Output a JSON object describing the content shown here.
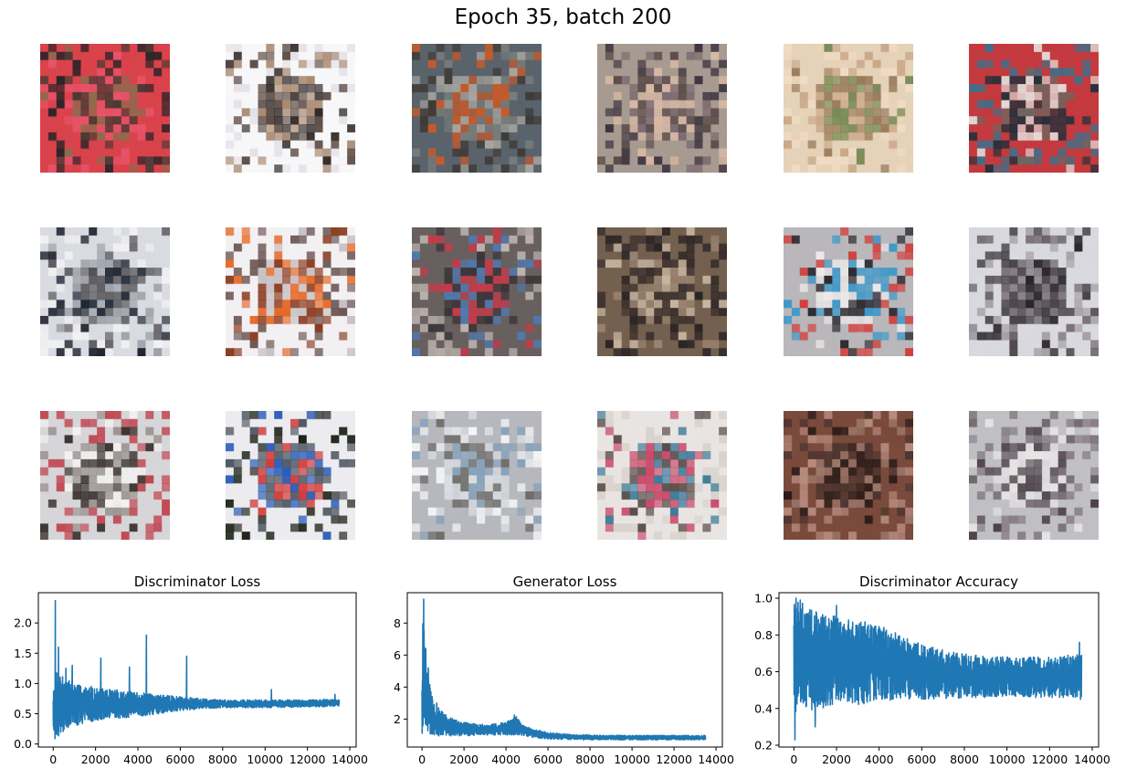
{
  "figure": {
    "suptitle": "Epoch 35, batch 200"
  },
  "samples": {
    "rows": 3,
    "cols": 6,
    "palettes": [
      [
        "#d9434b",
        "#4a3a34",
        "#8f6a4f",
        "#e8546a",
        "#2b2428"
      ],
      [
        "#f7f7f9",
        "#5b4a42",
        "#2d2624",
        "#a98a72",
        "#e4e2e6"
      ],
      [
        "#5a636b",
        "#777d7b",
        "#a7a5a0",
        "#c65a2a",
        "#3e3a36"
      ],
      [
        "#a79a90",
        "#5a4a48",
        "#d7b8a4",
        "#7d6b72",
        "#3d3540"
      ],
      [
        "#e5d2b8",
        "#c9a888",
        "#9a7b5c",
        "#7a8a56",
        "#f0dcc4"
      ],
      [
        "#c33a3f",
        "#27303a",
        "#6d6660",
        "#e2dad6",
        "#3f6e88"
      ],
      [
        "#d9dbe0",
        "#9ca0a8",
        "#202633",
        "#5d5b60",
        "#f1f1f3"
      ],
      [
        "#f2f0f2",
        "#c6bfc3",
        "#8a3b1f",
        "#e56a2a",
        "#6b5552"
      ],
      [
        "#68605e",
        "#3a3438",
        "#c63a48",
        "#4f79b0",
        "#bdb5b0"
      ],
      [
        "#74604f",
        "#3b302d",
        "#9b8472",
        "#c9b7a2",
        "#2a2424"
      ],
      [
        "#b9b7ba",
        "#ede9ea",
        "#2e2c33",
        "#3f98c8",
        "#d23f3c"
      ],
      [
        "#d8d9de",
        "#494348",
        "#7a7078",
        "#2a262c",
        "#a59fa3"
      ],
      [
        "#d6d5d8",
        "#9b9390",
        "#3b3330",
        "#f3f1f1",
        "#c04650"
      ],
      [
        "#ecebef",
        "#4f5862",
        "#2b5cb5",
        "#d03b3a",
        "#1e2418"
      ],
      [
        "#b6b8bd",
        "#88a2ba",
        "#d9dde2",
        "#6f6c68",
        "#f5f5f7"
      ],
      [
        "#e8e4e2",
        "#5a4e4a",
        "#c84a6a",
        "#3c7a9a",
        "#d8d2cc"
      ],
      [
        "#7a4a3c",
        "#4d3530",
        "#9b776a",
        "#2a1c18",
        "#b88b80"
      ],
      [
        "#bfbfc4",
        "#6b6066",
        "#4d4248",
        "#e7e4e6",
        "#8b8088"
      ]
    ]
  },
  "chart_data": [
    {
      "type": "line",
      "title": "Discriminator Loss",
      "xlim": [
        -700,
        14300
      ],
      "ylim": [
        -0.05,
        2.5
      ],
      "xticks": [
        "0",
        "2000",
        "4000",
        "6000",
        "8000",
        "10000",
        "12000",
        "14000"
      ],
      "xtick_values": [
        0,
        2000,
        4000,
        6000,
        8000,
        10000,
        12000,
        14000
      ],
      "yticks": [
        "0.0",
        "0.5",
        "1.0",
        "1.5",
        "2.0"
      ],
      "ytick_values": [
        0,
        0.5,
        1,
        1.5,
        2
      ],
      "color": "#1f77b4",
      "envelope": {
        "x": [
          0,
          100,
          300,
          600,
          1000,
          1500,
          2000,
          3000,
          4000,
          5000,
          6000,
          7000,
          8000,
          10000,
          12000,
          13500
        ],
        "low": [
          0.3,
          0.05,
          0.15,
          0.25,
          0.3,
          0.35,
          0.38,
          0.42,
          0.45,
          0.5,
          0.55,
          0.58,
          0.6,
          0.6,
          0.61,
          0.62
        ],
        "high": [
          0.9,
          1.3,
          1.2,
          1.1,
          1.0,
          0.95,
          0.92,
          0.9,
          0.85,
          0.82,
          0.78,
          0.75,
          0.73,
          0.73,
          0.73,
          0.74
        ]
      },
      "spikes": [
        [
          100,
          2.37
        ],
        [
          250,
          1.6
        ],
        [
          600,
          1.25
        ],
        [
          900,
          1.3
        ],
        [
          1300,
          0.95
        ],
        [
          1800,
          0.95
        ],
        [
          2250,
          1.42
        ],
        [
          3600,
          1.27
        ],
        [
          4400,
          1.8
        ],
        [
          6300,
          1.45
        ],
        [
          10300,
          0.9
        ],
        [
          13300,
          0.82
        ]
      ],
      "points": 13500
    },
    {
      "type": "line",
      "title": "Generator Loss",
      "xlim": [
        -700,
        14300
      ],
      "ylim": [
        0.25,
        9.9
      ],
      "xticks": [
        "0",
        "2000",
        "4000",
        "6000",
        "8000",
        "10000",
        "12000",
        "14000"
      ],
      "xtick_values": [
        0,
        2000,
        4000,
        6000,
        8000,
        10000,
        12000,
        14000
      ],
      "yticks": [
        "2",
        "4",
        "6",
        "8"
      ],
      "ytick_values": [
        2,
        4,
        6,
        8
      ],
      "color": "#1f77b4",
      "envelope": {
        "x": [
          0,
          50,
          150,
          300,
          600,
          1000,
          1500,
          2000,
          3000,
          4000,
          4500,
          5000,
          6000,
          7000,
          8000,
          10000,
          12000,
          13500
        ],
        "low": [
          0.6,
          0.8,
          1.2,
          1.0,
          0.9,
          0.9,
          0.95,
          0.95,
          1.0,
          1.0,
          1.0,
          0.9,
          0.75,
          0.72,
          0.7,
          0.7,
          0.7,
          0.7
        ],
        "high": [
          4.0,
          9.5,
          6.4,
          4.5,
          3.0,
          2.4,
          2.0,
          1.8,
          1.65,
          1.8,
          2.2,
          1.5,
          1.15,
          1.05,
          1.0,
          0.98,
          0.98,
          0.98
        ]
      },
      "spikes": [
        [
          80,
          9.5
        ],
        [
          180,
          6.4
        ],
        [
          300,
          5.2
        ],
        [
          500,
          3.2
        ],
        [
          700,
          3.0
        ],
        [
          4400,
          2.25
        ]
      ],
      "points": 13500
    },
    {
      "type": "line",
      "title": "Discriminator Accuracy",
      "xlim": [
        -700,
        14300
      ],
      "ylim": [
        0.19,
        1.03
      ],
      "xticks": [
        "0",
        "2000",
        "4000",
        "6000",
        "8000",
        "10000",
        "12000",
        "14000"
      ],
      "xtick_values": [
        0,
        2000,
        4000,
        6000,
        8000,
        10000,
        12000,
        14000
      ],
      "yticks": [
        "0.2",
        "0.4",
        "0.6",
        "0.8",
        "1.0"
      ],
      "ytick_values": [
        0.2,
        0.4,
        0.6,
        0.8,
        1.0
      ],
      "color": "#1f77b4",
      "envelope": {
        "x": [
          0,
          200,
          600,
          1000,
          2000,
          3000,
          4000,
          5000,
          6000,
          7000,
          8000,
          10000,
          12000,
          13500
        ],
        "low": [
          0.35,
          0.4,
          0.4,
          0.38,
          0.42,
          0.42,
          0.44,
          0.45,
          0.45,
          0.45,
          0.46,
          0.46,
          0.46,
          0.46
        ],
        "high": [
          1.0,
          1.0,
          0.95,
          0.93,
          0.9,
          0.88,
          0.86,
          0.8,
          0.75,
          0.72,
          0.7,
          0.68,
          0.68,
          0.7
        ]
      },
      "spikes": [
        [
          50,
          0.23
        ],
        [
          100,
          1.0
        ],
        [
          300,
          0.99
        ],
        [
          1000,
          0.3
        ],
        [
          2000,
          0.96
        ],
        [
          13400,
          0.76
        ],
        [
          13450,
          0.45
        ]
      ],
      "points": 13500
    }
  ]
}
